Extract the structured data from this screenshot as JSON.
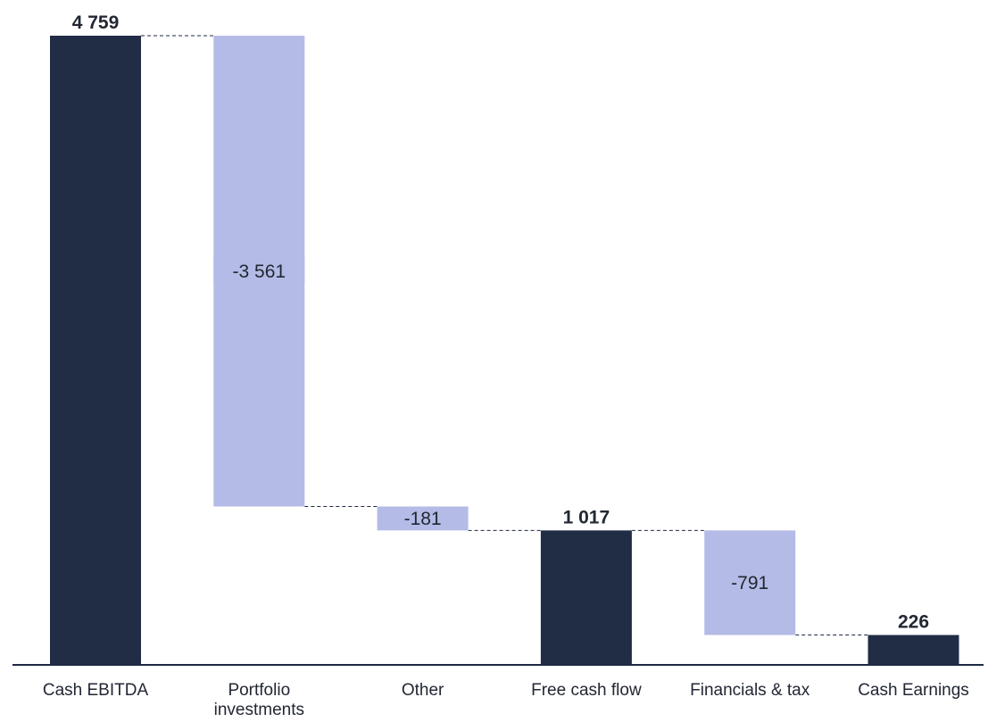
{
  "chart_data": {
    "type": "bar",
    "subtype": "waterfall",
    "categories": [
      "Cash EBITDA",
      "Portfolio investments",
      "Other",
      "Free cash flow",
      "Financials & tax",
      "Cash Earnings"
    ],
    "category_lines": [
      [
        "Cash EBITDA"
      ],
      [
        "Portfolio",
        "investments"
      ],
      [
        "Other"
      ],
      [
        "Free cash flow"
      ],
      [
        "Financials & tax"
      ],
      [
        "Cash Earnings"
      ]
    ],
    "values": [
      4759,
      -3561,
      -181,
      1017,
      -791,
      226
    ],
    "kinds": [
      "total",
      "delta",
      "delta",
      "total",
      "delta",
      "total"
    ],
    "data_labels": [
      "4 759",
      "-3 561",
      "-181",
      "1 017",
      "-791",
      "226"
    ],
    "ylim": [
      0,
      4759
    ],
    "grid": false,
    "colors": {
      "total": "#212c45",
      "delta": "#b4bbe6",
      "axis": "#1e2a44",
      "text": "#222733"
    }
  }
}
